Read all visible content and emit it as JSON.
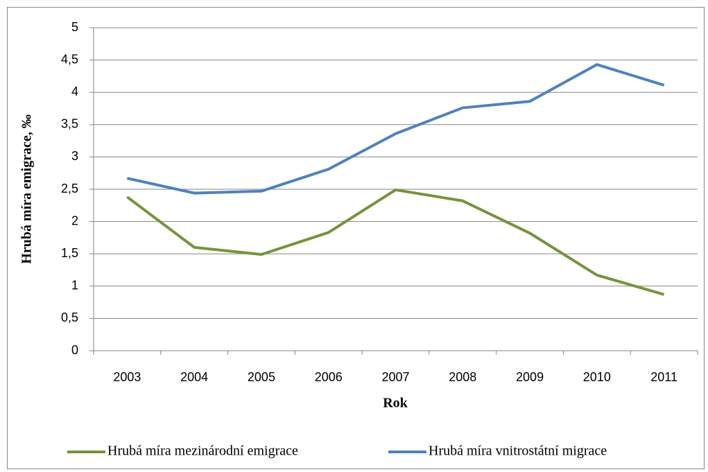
{
  "chart_data": {
    "type": "line",
    "y_label": "Hrubá míra emigrace, ‰",
    "x_label": "Rok",
    "categories": [
      "2003",
      "2004",
      "2005",
      "2006",
      "2007",
      "2008",
      "2009",
      "2010",
      "2011"
    ],
    "series": [
      {
        "name": "Hrubá míra mezinárodní emigrace",
        "color": "#77933c",
        "values": [
          2.38,
          1.6,
          1.49,
          1.83,
          2.49,
          2.32,
          1.82,
          1.17,
          0.87
        ]
      },
      {
        "name": "Hrubá míra vnitrostátní migrace",
        "color": "#4f81bd",
        "values": [
          2.67,
          2.44,
          2.47,
          2.81,
          3.36,
          3.76,
          3.86,
          4.43,
          4.11
        ]
      }
    ],
    "ylim": [
      0,
      5
    ],
    "yticks": [
      0,
      {
        "value": 0.5,
        "label": "0,5"
      },
      1,
      {
        "value": 1.5,
        "label": "1,5"
      },
      2,
      {
        "value": 2.5,
        "label": "2,5"
      },
      3,
      {
        "value": 3.5,
        "label": "3,5"
      },
      4,
      {
        "value": 4.5,
        "label": "4,5"
      },
      5
    ],
    "grid": true,
    "legend": "bottom"
  }
}
